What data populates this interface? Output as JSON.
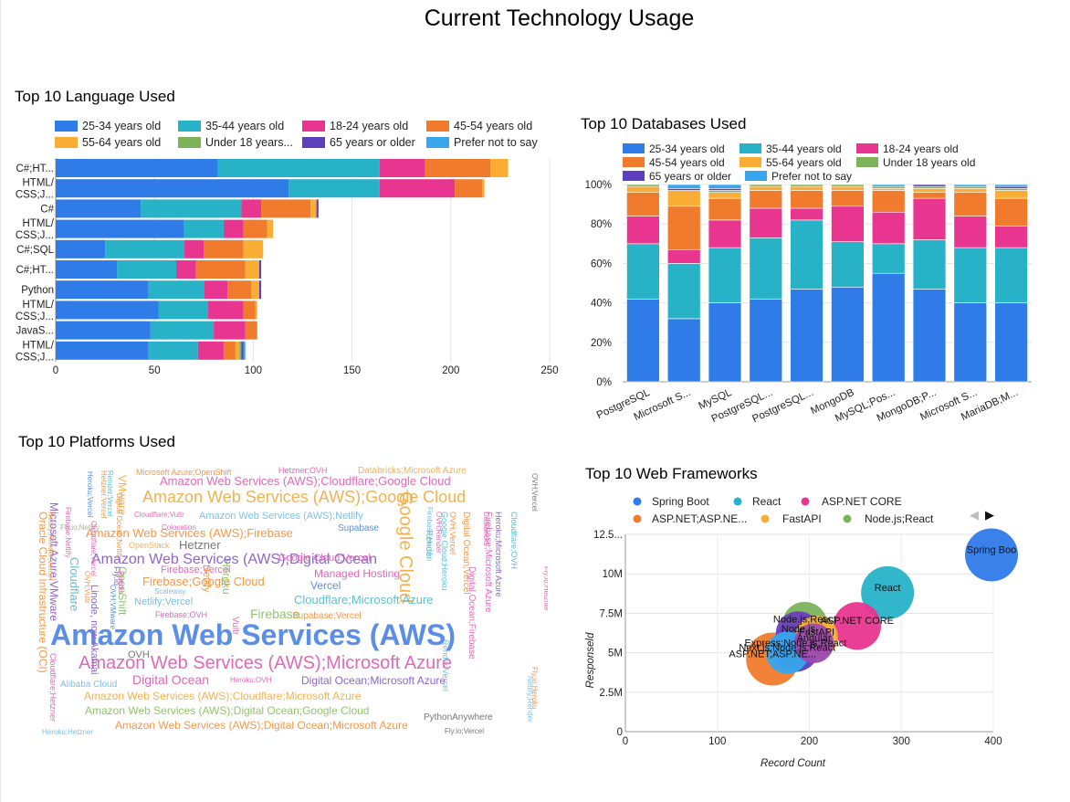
{
  "page": {
    "title": "Current Technology Usage"
  },
  "colors": {
    "25-34": "#2f7be8",
    "35-44": "#27b2c8",
    "18-24": "#e8358f",
    "45-54": "#f07b2c",
    "55-64": "#f9ad34",
    "u18": "#7cb35b",
    "65plus": "#5b3fbd",
    "pnts": "#37a6ec"
  },
  "chart_data": [
    {
      "id": "languages",
      "type": "bar",
      "orientation": "horizontal",
      "stacked": true,
      "title": "Top 10 Language Used",
      "legend_position": "top",
      "categories": [
        "C#;HT...",
        "HTML/\nCSS;J...",
        "C#",
        "HTML/\nCSS;J...",
        "C#;SQL",
        "C#;HT...",
        "Python",
        "HTML/\nCSS;J...",
        "JavaS...",
        "HTML/\nCSS;J..."
      ],
      "xlim": [
        0,
        250
      ],
      "xticks": [
        "0",
        "50",
        "100",
        "150",
        "200",
        "250"
      ],
      "grid": true,
      "series": [
        {
          "name": "25-34 years old",
          "key": "25-34",
          "values": [
            82,
            118,
            43,
            65,
            25,
            31,
            47,
            52,
            48,
            47
          ]
        },
        {
          "name": "35-44 years old",
          "key": "35-44",
          "values": [
            82,
            46,
            51,
            20,
            40,
            30,
            28,
            25,
            32,
            25
          ]
        },
        {
          "name": "18-24 years old",
          "key": "18-24",
          "values": [
            23,
            38,
            10,
            10,
            10,
            10,
            12,
            18,
            16,
            13
          ]
        },
        {
          "name": "45-54 years old",
          "key": "45-54",
          "values": [
            33,
            14,
            25,
            12,
            20,
            25,
            12,
            6,
            6,
            6
          ]
        },
        {
          "name": "55-64 years old",
          "key": "55-64",
          "values": [
            9,
            1,
            3,
            3,
            10,
            7,
            4,
            1,
            0,
            2
          ]
        },
        {
          "name": "Under 18 years...",
          "key": "u18",
          "values": [
            0,
            0,
            0,
            0,
            0,
            0,
            0,
            0,
            0,
            1
          ]
        },
        {
          "name": "65 years or older",
          "key": "65plus",
          "values": [
            0,
            0,
            1,
            0,
            0,
            1,
            1,
            0,
            0,
            1
          ]
        },
        {
          "name": "Prefer not to say",
          "key": "pnts",
          "values": [
            0,
            0,
            0,
            0,
            0,
            0,
            0,
            0,
            0,
            1
          ]
        }
      ]
    },
    {
      "id": "databases",
      "type": "bar",
      "orientation": "vertical",
      "stacked": "percent",
      "title": "Top 10 Databases Used",
      "legend_position": "top",
      "categories": [
        "PostgreSQL",
        "Microsoft S...",
        "MySQL",
        "PostgreSQL...",
        "PostgreSQL...",
        "MongoDB",
        "MySQL;Pos...",
        "MongoDB;P...",
        "Microsoft S...",
        "MariaDB;M..."
      ],
      "ylim": [
        0,
        100
      ],
      "yticks": [
        "0%",
        "20%",
        "40%",
        "60%",
        "80%",
        "100%"
      ],
      "grid": true,
      "series": [
        {
          "name": "25-34 years old",
          "key": "25-34",
          "values": [
            42,
            32,
            40,
            42,
            47,
            48,
            55,
            47,
            40,
            40
          ]
        },
        {
          "name": "35-44 years old",
          "key": "35-44",
          "values": [
            28,
            28,
            28,
            31,
            35,
            23,
            15,
            25,
            28,
            28
          ]
        },
        {
          "name": "18-24 years old",
          "key": "18-24",
          "values": [
            14,
            7,
            14,
            15,
            6,
            18,
            16,
            21,
            16,
            11
          ]
        },
        {
          "name": "45-54 years old",
          "key": "45-54",
          "values": [
            12,
            22,
            11,
            9,
            9,
            8,
            11,
            3,
            12,
            14
          ]
        },
        {
          "name": "55-64 years old",
          "key": "55-64",
          "values": [
            3,
            8,
            3,
            2,
            2,
            2,
            1,
            2,
            2,
            4
          ]
        },
        {
          "name": "Under 18 years old",
          "key": "u18",
          "values": [
            1,
            0,
            1,
            1,
            1,
            1,
            1,
            1,
            1,
            1
          ]
        },
        {
          "name": "65 years or older",
          "key": "65plus",
          "values": [
            0,
            1,
            1,
            0,
            0,
            0,
            0,
            1,
            0,
            1
          ]
        },
        {
          "name": "Prefer not to say",
          "key": "pnts",
          "values": [
            0,
            2,
            2,
            0,
            0,
            0,
            1,
            0,
            1,
            1
          ]
        }
      ]
    },
    {
      "id": "platforms",
      "type": "wordcloud",
      "title": "Top 10 Platforms Used",
      "words": [
        {
          "text": "Amazon Web Services (AWS)",
          "size": 32,
          "color": "#5b8ee6",
          "bold": true
        },
        {
          "text": "Amazon Web Services (AWS);Microsoft Azure",
          "size": 20,
          "color": "#e06ab8"
        },
        {
          "text": "Amazon Web Services (AWS);Google Cloud",
          "size": 18,
          "color": "#f3b24f"
        },
        {
          "text": "Amazon Web Services (AWS);Digital Ocean",
          "size": 16,
          "color": "#8e66c9"
        },
        {
          "text": "Amazon Web Services (AWS);Cloudflare;Google Cloud",
          "size": 13,
          "color": "#e06ab8"
        },
        {
          "text": "Amazon Web Services (AWS);Firebase",
          "size": 13,
          "color": "#f3984a"
        },
        {
          "text": "Amazon Web Services (AWS);Netlify",
          "size": 11,
          "color": "#7dc0e8"
        },
        {
          "text": "Amazon Web Services (AWS);Cloudflare;Microsoft Azure",
          "size": 12,
          "color": "#f3b24f"
        },
        {
          "text": "Amazon Web Services (AWS);Digital Ocean;Google Cloud",
          "size": 12,
          "color": "#91c56b"
        },
        {
          "text": "Amazon Web Services (AWS);Digital Ocean;Microsoft Azure",
          "size": 12,
          "color": "#f3984a"
        },
        {
          "text": "Google Cloud",
          "size": 20,
          "color": "#f3b24f",
          "vertical": true
        },
        {
          "text": "Digital Ocean",
          "size": 14,
          "color": "#e06ab8"
        },
        {
          "text": "Digital Ocean;Microsoft Azure",
          "size": 12,
          "color": "#8e66c9"
        },
        {
          "text": "Firebase;Google Cloud",
          "size": 13,
          "color": "#f3984a"
        },
        {
          "text": "Firebase",
          "size": 14,
          "color": "#91c56b"
        },
        {
          "text": "Cloudflare;Microsoft Azure",
          "size": 13,
          "color": "#5fbfcf"
        },
        {
          "text": "Managed Hosting",
          "size": 12,
          "color": "#e06ab8"
        },
        {
          "text": "Vercel",
          "size": 12,
          "color": "#5b8ee6"
        },
        {
          "text": "Hetzner",
          "size": 13,
          "color": "#777777"
        },
        {
          "text": "OVH",
          "size": 11,
          "color": "#777777"
        },
        {
          "text": "Google Cloud;Vercel",
          "size": 11,
          "color": "#e06ab8"
        },
        {
          "text": "Supabase",
          "size": 10,
          "color": "#5b8ee6"
        },
        {
          "text": "Supabase;Vercel",
          "size": 10,
          "color": "#f3984a"
        },
        {
          "text": "Netlify;Vercel",
          "size": 11,
          "color": "#7dc0e8"
        },
        {
          "text": "Firebase;Vercel",
          "size": 11,
          "color": "#e06ab8"
        },
        {
          "text": "Firebase;OVH",
          "size": 9,
          "color": "#e06ab8"
        },
        {
          "text": "Alibaba Cloud",
          "size": 10,
          "color": "#7dc0e8"
        },
        {
          "text": "Heroku;OVH",
          "size": 8,
          "color": "#e06ab8"
        },
        {
          "text": "PythonAnywhere",
          "size": 10,
          "color": "#777777"
        },
        {
          "text": "Fly.io;Vercel",
          "size": 8,
          "color": "#777777"
        },
        {
          "text": "Heroku;Hetzner",
          "size": 8,
          "color": "#7dc0e8"
        },
        {
          "text": "Microsoft Azure;OpenShift",
          "size": 9,
          "color": "#f3984a"
        },
        {
          "text": "Hetzner;OVH",
          "size": 9,
          "color": "#e06ab8"
        },
        {
          "text": "Databricks;Microsoft Azure",
          "size": 10,
          "color": "#f3b24f"
        },
        {
          "text": "OpenStack",
          "size": 9,
          "color": "#f3b24f"
        },
        {
          "text": "Scaleway",
          "size": 8,
          "color": "#7dc0e8"
        },
        {
          "text": "Fly.io;Netlify",
          "size": 8,
          "color": "#91c56b"
        },
        {
          "text": "Colocation",
          "size": 8,
          "color": "#e06ab8"
        },
        {
          "text": "Cloudflare;Vultr",
          "size": 8,
          "color": "#e06ab8"
        },
        {
          "text": "Oracle Cloud Infrastructure (OCI)",
          "size": 12,
          "color": "#f3984a",
          "vertical": true
        },
        {
          "text": "Microsoft Azure;VMware",
          "size": 12,
          "color": "#8e66c9",
          "vertical": true
        },
        {
          "text": "Cloudflare",
          "size": 13,
          "color": "#5fbfcf",
          "vertical": true
        },
        {
          "text": "OpenShift",
          "size": 12,
          "color": "#91c56b",
          "vertical": true
        },
        {
          "text": "VMware",
          "size": 12,
          "color": "#f3b24f",
          "vertical": true
        },
        {
          "text": "Heroku",
          "size": 12,
          "color": "#91c56b",
          "vertical": true
        },
        {
          "text": "Netlify",
          "size": 11,
          "color": "#f3984a",
          "vertical": true
        },
        {
          "text": "Vultr",
          "size": 10,
          "color": "#e06ab8",
          "vertical": true
        },
        {
          "text": "Render",
          "size": 10,
          "color": "#5fbfcf",
          "vertical": true
        },
        {
          "text": "Linode, now Akamai",
          "size": 11,
          "color": "#8e66c9",
          "vertical": true
        },
        {
          "text": "Digital Ocean;Vercel",
          "size": 10,
          "color": "#f3984a",
          "vertical": true
        },
        {
          "text": "Digital Ocean;Firebase",
          "size": 10,
          "color": "#e06ab8",
          "vertical": true
        },
        {
          "text": "Google Cloud;Heroku",
          "size": 9,
          "color": "#5fbfcf",
          "vertical": true
        },
        {
          "text": "Heroku;Microsoft Azure",
          "size": 9,
          "color": "#8e66c9",
          "vertical": true
        },
        {
          "text": "Cloudflare;OVH",
          "size": 9,
          "color": "#5fbfcf",
          "vertical": true
        },
        {
          "text": "Firebase;Microsoft Azure",
          "size": 10,
          "color": "#e06ab8",
          "vertical": true
        },
        {
          "text": "Cloudflare;Hetzner",
          "size": 9,
          "color": "#e06ab8",
          "vertical": true
        },
        {
          "text": "Firebase;Heroku",
          "size": 8,
          "color": "#7dc0e8",
          "vertical": true
        },
        {
          "text": "Netlify;Render;Vercel",
          "size": 8,
          "color": "#f3984a",
          "vertical": true
        },
        {
          "text": "Firebase;Netlify",
          "size": 8,
          "color": "#e06ab8",
          "vertical": true
        },
        {
          "text": "Heroku;Vercel",
          "size": 8,
          "color": "#5b8ee6",
          "vertical": true
        },
        {
          "text": "Hetzner;Vercel",
          "size": 8,
          "color": "#f3984a",
          "vertical": true
        },
        {
          "text": "Render;Vercel",
          "size": 8,
          "color": "#5fbfcf",
          "vertical": true
        },
        {
          "text": "Cloudflare;Vercel",
          "size": 8,
          "color": "#e06ab8",
          "vertical": true
        },
        {
          "text": "Digital Ocean;Netlify",
          "size": 8,
          "color": "#f3984a",
          "vertical": true
        },
        {
          "text": "OVH;Vercel",
          "size": 8,
          "color": "#777777",
          "vertical": true
        },
        {
          "text": "Fly.io;Hetzner",
          "size": 8,
          "color": "#e06ab8",
          "vertical": true
        },
        {
          "text": "Fly.io;Heroku",
          "size": 8,
          "color": "#f3984a",
          "vertical": true
        },
        {
          "text": "Netlify;Render",
          "size": 8,
          "color": "#7dc0e8",
          "vertical": true
        },
        {
          "text": "OVH;Render",
          "size": 8,
          "color": "#e06ab8",
          "vertical": true
        },
        {
          "text": "Databricks",
          "size": 8,
          "color": "#e06ab8",
          "vertical": true
        },
        {
          "text": "OVH;Vultr",
          "size": 8,
          "color": "#f3984a",
          "vertical": true
        },
        {
          "text": "OVH;VMware",
          "size": 8,
          "color": "#5b8ee6",
          "vertical": true
        },
        {
          "text": "Render",
          "size": 8,
          "color": "#e06ab8",
          "vertical": true
        },
        {
          "text": "Fly.io",
          "size": 9,
          "color": "#8e66c9",
          "vertical": true
        },
        {
          "text": "Render;Vercel",
          "size": 9,
          "color": "#7dc0e8",
          "vertical": true
        },
        {
          "text": "OVH;Vercel",
          "size": 9,
          "color": "#f3984a",
          "vertical": true
        }
      ]
    },
    {
      "id": "webframeworks",
      "type": "scatter",
      "subtype": "bubble",
      "title": "Top 10 Web Frameworks",
      "xlabel": "Record Count",
      "ylabel": "Responseld",
      "xlim": [
        0,
        400
      ],
      "ylim": [
        0,
        12500000
      ],
      "xticks": [
        "0",
        "100",
        "200",
        "300",
        "400"
      ],
      "yticks": [
        "0",
        "2.5M",
        "5M",
        "7.5M",
        "10M",
        "12.5..."
      ],
      "legend_position": "top",
      "grid": true,
      "legend": [
        {
          "name": "Spring Boot",
          "color": "#2f7be8"
        },
        {
          "name": "React",
          "color": "#27b2c8"
        },
        {
          "name": "ASP.NET CORE",
          "color": "#e8358f"
        },
        {
          "name": "ASP.NET;ASP.NE...",
          "color": "#f07b2c"
        },
        {
          "name": "FastAPI",
          "color": "#f9ad34"
        },
        {
          "name": "Node.js;React",
          "color": "#7cb35b"
        }
      ],
      "points": [
        {
          "label": "Spring Boo",
          "x": 398,
          "y": 11200000,
          "r": 1.0,
          "color": "#2f7be8"
        },
        {
          "label": "React",
          "x": 285,
          "y": 8800000,
          "r": 1.0,
          "color": "#27b2c8"
        },
        {
          "label": "ASP.NET CORE",
          "x": 252,
          "y": 6700000,
          "r": 0.9,
          "color": "#e8358f"
        },
        {
          "label": "ASP.NET;ASP.NE...",
          "x": 160,
          "y": 4600000,
          "r": 1.0,
          "color": "#f07b2c"
        },
        {
          "label": "FastAPI",
          "x": 208,
          "y": 6000000,
          "r": 0.8,
          "color": "#f9ad34"
        },
        {
          "label": "Node.js;React",
          "x": 195,
          "y": 6800000,
          "r": 0.85,
          "color": "#7cb35b"
        },
        {
          "label": "Node.js",
          "x": 188,
          "y": 6200000,
          "r": 0.85,
          "color": "#6b3fbd"
        },
        {
          "label": "Express;Node.js;React",
          "x": 185,
          "y": 5300000,
          "r": 0.9,
          "color": "#5b3fbd"
        },
        {
          "label": "Next.js;Node.js;React",
          "x": 176,
          "y": 5000000,
          "r": 0.8,
          "color": "#37a6ec"
        },
        {
          "label": "Angular",
          "x": 205,
          "y": 5600000,
          "r": 0.75,
          "color": "#9c4ab0"
        }
      ],
      "nav": {
        "prev": "◀",
        "next": "▶"
      }
    }
  ]
}
